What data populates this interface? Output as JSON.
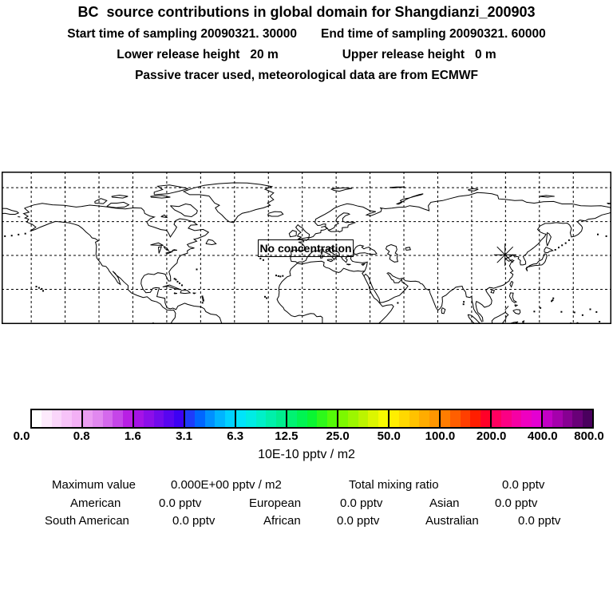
{
  "header": {
    "title": "BC  source contributions in global domain for Shangdianzi_200903",
    "start_time": "Start time of sampling 20090321. 30000",
    "end_time": "End time of sampling 20090321. 60000",
    "lower_release": "Lower release height   20 m",
    "upper_release": "Upper release height   0 m",
    "tracer_note": "Passive tracer used, meteorological data are from ECMWF"
  },
  "map": {
    "no_data_label": "No concentration",
    "station_marker": "asterisk"
  },
  "chart_data": {
    "type": "heatmap",
    "title": "BC source contributions in global domain for Shangdianzi_200903",
    "subtitle": [
      "Start time of sampling 20090321. 30000",
      "End time of sampling 20090321. 60000",
      "Lower release height 20 m",
      "Upper release height 0 m",
      "Passive tracer used, meteorological data are from ECMWF"
    ],
    "projection": "equirectangular world map, lon -180..180, lat 0..90N, dashed graticule every 20 degrees",
    "field_values": "all zero - no concentration field plotted",
    "annotation": "No concentration",
    "station_marker": {
      "symbol": "asterisk",
      "approx_lon": 117.2,
      "approx_lat": 40.9
    },
    "colorbar": {
      "unit": "10E-10 pptv / m2",
      "ticks": [
        "0.0",
        "0.8",
        "1.6",
        "3.1",
        "6.3",
        "12.5",
        "25.0",
        "50.0",
        "100.0",
        "200.0",
        "400.0",
        "800.0"
      ],
      "segment_colors": [
        [
          "#ffffff",
          "#fdeafc",
          "#fad6fa",
          "#f7c3f8",
          "#f3b0f5"
        ],
        [
          "#eb9df2",
          "#e188ef",
          "#d469ec",
          "#c546e8",
          "#b81fe4"
        ],
        [
          "#a513e6",
          "#8c0ee9",
          "#720aec",
          "#5805f0",
          "#3d01f4"
        ],
        [
          "#1e3cfa",
          "#0066ff",
          "#0090ff",
          "#00b4ff",
          "#00d2ff"
        ],
        [
          "#00e4fa",
          "#00ece4",
          "#00f0c8",
          "#00f0aa",
          "#00ee8e"
        ],
        [
          "#00f272",
          "#00f452",
          "#0af632",
          "#2ef81a",
          "#55fa08"
        ],
        [
          "#7cf800",
          "#9cf600",
          "#bcf400",
          "#dcf600",
          "#f8fa00"
        ],
        [
          "#ffee00",
          "#ffd800",
          "#ffc200",
          "#ffac00",
          "#ff9600"
        ],
        [
          "#ff7d00",
          "#ff5f00",
          "#ff3f00",
          "#ff1e00",
          "#ff0028"
        ],
        [
          "#ff0060",
          "#fb0084",
          "#f500a4",
          "#ee00c0",
          "#e400d2"
        ],
        [
          "#c200c6",
          "#a500ac",
          "#870092",
          "#690078",
          "#4a005e"
        ]
      ]
    },
    "summary": {
      "maximum_value": "0.000E+00 pptv / m2",
      "total_mixing_ratio": "0.0 pptv",
      "regions": [
        [
          "American",
          "0.0 pptv"
        ],
        [
          "European",
          "0.0 pptv"
        ],
        [
          "Asian",
          "0.0 pptv"
        ],
        [
          "South American",
          "0.0 pptv"
        ],
        [
          "African",
          "0.0 pptv"
        ],
        [
          "Australian",
          "0.0 pptv"
        ]
      ]
    }
  },
  "stats": {
    "maximum": {
      "label": "Maximum value",
      "value": "0.000E+00 pptv / m2"
    },
    "total": {
      "label": "Total mixing ratio",
      "value": "0.0 pptv"
    },
    "regions": [
      {
        "label": "American",
        "value": "0.0 pptv"
      },
      {
        "label": "European",
        "value": "0.0 pptv"
      },
      {
        "label": "Asian",
        "value": "0.0 pptv"
      },
      {
        "label": "South American",
        "value": "0.0 pptv"
      },
      {
        "label": "African",
        "value": "0.0 pptv"
      },
      {
        "label": "Australian",
        "value": "0.0 pptv"
      }
    ]
  }
}
